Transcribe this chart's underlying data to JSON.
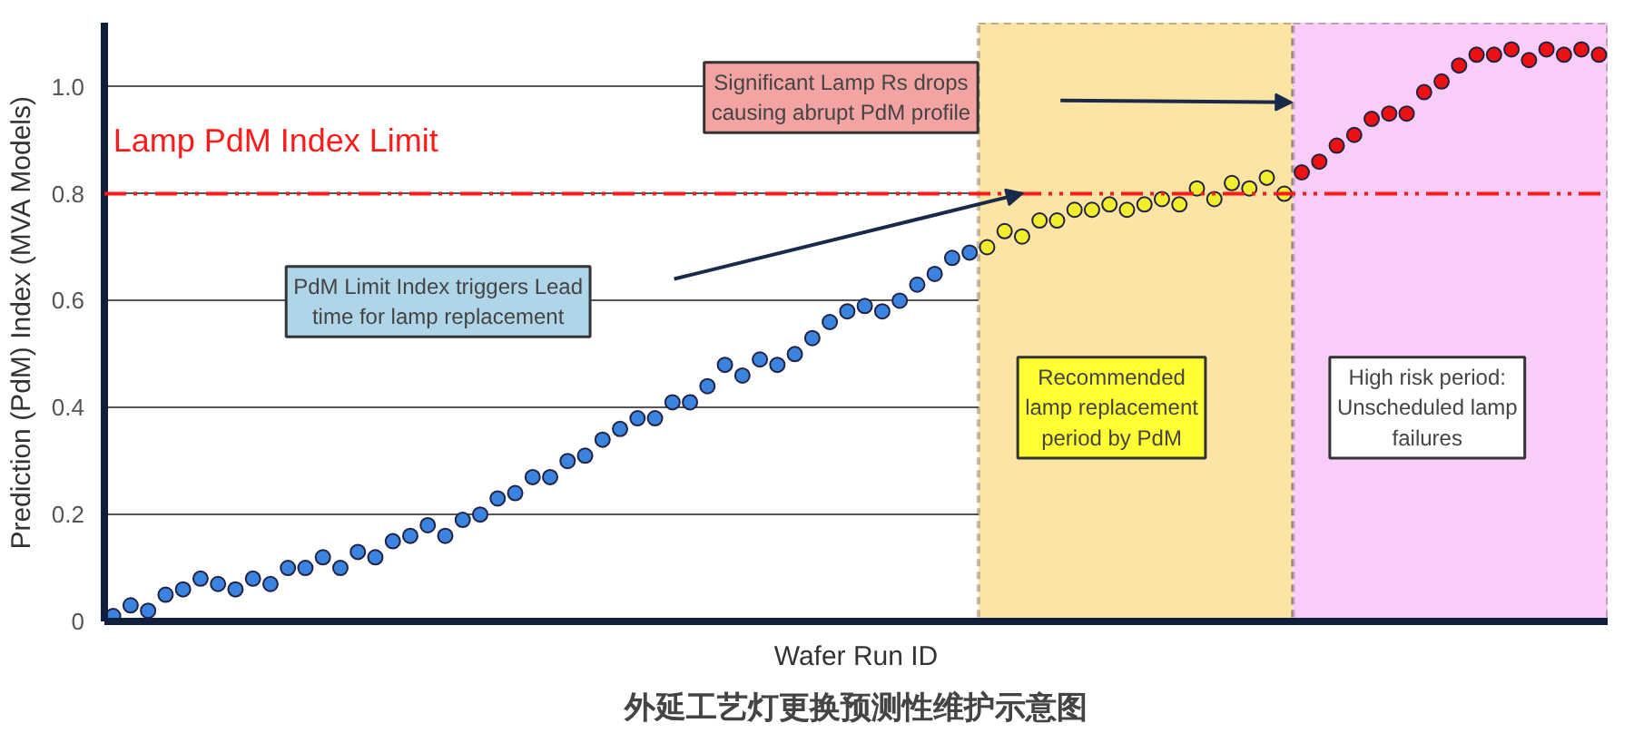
{
  "chart_data": {
    "type": "scatter",
    "title": "外延工艺灯更换预测性维护示意图",
    "xlabel": "Wafer Run ID",
    "ylabel": "Prediction (PdM) Index (MVA Models)",
    "categories": [
      null,
      null,
      null,
      null,
      null,
      null,
      null,
      null,
      null,
      null,
      null,
      null,
      null,
      null,
      null,
      null,
      null,
      null,
      null,
      null,
      null,
      null,
      null,
      null,
      null,
      null,
      null,
      null,
      null,
      null,
      null,
      null,
      null,
      null,
      null,
      null,
      null,
      null,
      null,
      null,
      null,
      null,
      null,
      null,
      null,
      null,
      null,
      null,
      null,
      null,
      null,
      null,
      null,
      null,
      null,
      null,
      null,
      null,
      null,
      null,
      null,
      null,
      null,
      null,
      null,
      null,
      null,
      null,
      null,
      null,
      null,
      null,
      null,
      null,
      null,
      null,
      null,
      null,
      null,
      null,
      null,
      null,
      null,
      null,
      null,
      null
    ],
    "ylim": [
      0,
      1.12
    ],
    "yticks": [
      0,
      0.2,
      0.4,
      0.6,
      0.8,
      {
        "value": 1.0,
        "label": "1.0"
      }
    ],
    "grid": "y",
    "tick_labels": "y",
    "marker": "circle",
    "series": [
      {
        "color": "#3a84e0",
        "values": [
          0.01,
          0.03,
          0.02,
          0.05,
          0.06,
          0.08,
          0.07,
          0.06,
          0.08,
          0.07,
          0.1,
          0.1,
          0.12,
          0.1,
          0.13,
          0.12,
          0.15,
          0.16,
          0.18,
          0.16,
          0.19,
          0.2,
          0.23,
          0.24,
          0.27,
          0.27,
          0.3,
          0.31,
          0.34,
          0.36,
          0.38,
          0.38,
          0.41,
          0.41,
          0.44,
          0.48,
          0.46,
          0.49,
          0.48,
          0.5,
          0.53,
          0.56,
          0.58,
          0.59,
          0.58,
          0.6,
          0.63,
          0.65,
          0.68,
          0.69,
          null,
          null,
          null,
          null,
          null,
          null,
          null,
          null,
          null,
          null,
          null,
          null,
          null,
          null,
          null,
          null,
          null,
          null,
          null,
          null,
          null,
          null,
          null,
          null,
          null,
          null,
          null,
          null,
          null,
          null,
          null,
          null,
          null,
          null,
          null,
          null
        ]
      },
      {
        "color": "#f2ee2e",
        "values": [
          null,
          null,
          null,
          null,
          null,
          null,
          null,
          null,
          null,
          null,
          null,
          null,
          null,
          null,
          null,
          null,
          null,
          null,
          null,
          null,
          null,
          null,
          null,
          null,
          null,
          null,
          null,
          null,
          null,
          null,
          null,
          null,
          null,
          null,
          null,
          null,
          null,
          null,
          null,
          null,
          null,
          null,
          null,
          null,
          null,
          null,
          null,
          null,
          null,
          null,
          0.7,
          0.73,
          0.72,
          0.75,
          0.75,
          0.77,
          0.77,
          0.78,
          0.77,
          0.78,
          0.79,
          0.78,
          0.81,
          0.79,
          0.82,
          0.81,
          0.83,
          0.8,
          null,
          null,
          null,
          null,
          null,
          null,
          null,
          null,
          null,
          null,
          null,
          null,
          null,
          null,
          null,
          null,
          null,
          null
        ]
      },
      {
        "color": "#ee1111",
        "values": [
          null,
          null,
          null,
          null,
          null,
          null,
          null,
          null,
          null,
          null,
          null,
          null,
          null,
          null,
          null,
          null,
          null,
          null,
          null,
          null,
          null,
          null,
          null,
          null,
          null,
          null,
          null,
          null,
          null,
          null,
          null,
          null,
          null,
          null,
          null,
          null,
          null,
          null,
          null,
          null,
          null,
          null,
          null,
          null,
          null,
          null,
          null,
          null,
          null,
          null,
          null,
          null,
          null,
          null,
          null,
          null,
          null,
          null,
          null,
          null,
          null,
          null,
          null,
          null,
          null,
          null,
          null,
          null,
          0.84,
          0.86,
          0.89,
          0.91,
          0.94,
          0.95,
          0.95,
          0.99,
          1.01,
          1.04,
          1.06,
          1.06,
          1.07,
          1.05,
          1.07,
          1.06,
          1.07,
          1.06
        ]
      }
    ],
    "ref_lines": [
      {
        "axis": "y",
        "value": 0.8,
        "label": "Lamp PdM Index Limit",
        "color": "#ff1a1a",
        "line_style": "dashdot"
      }
    ],
    "annotations": [
      "Significant Lamp Rs drops\ncausing abrupt PdM profile",
      "PdM Limit Index triggers Lead\ntime for lamp replacement",
      "Recommended\nlamp replacement\nperiod by PdM",
      "High risk period:\nUnscheduled lamp\nfailures"
    ]
  }
}
